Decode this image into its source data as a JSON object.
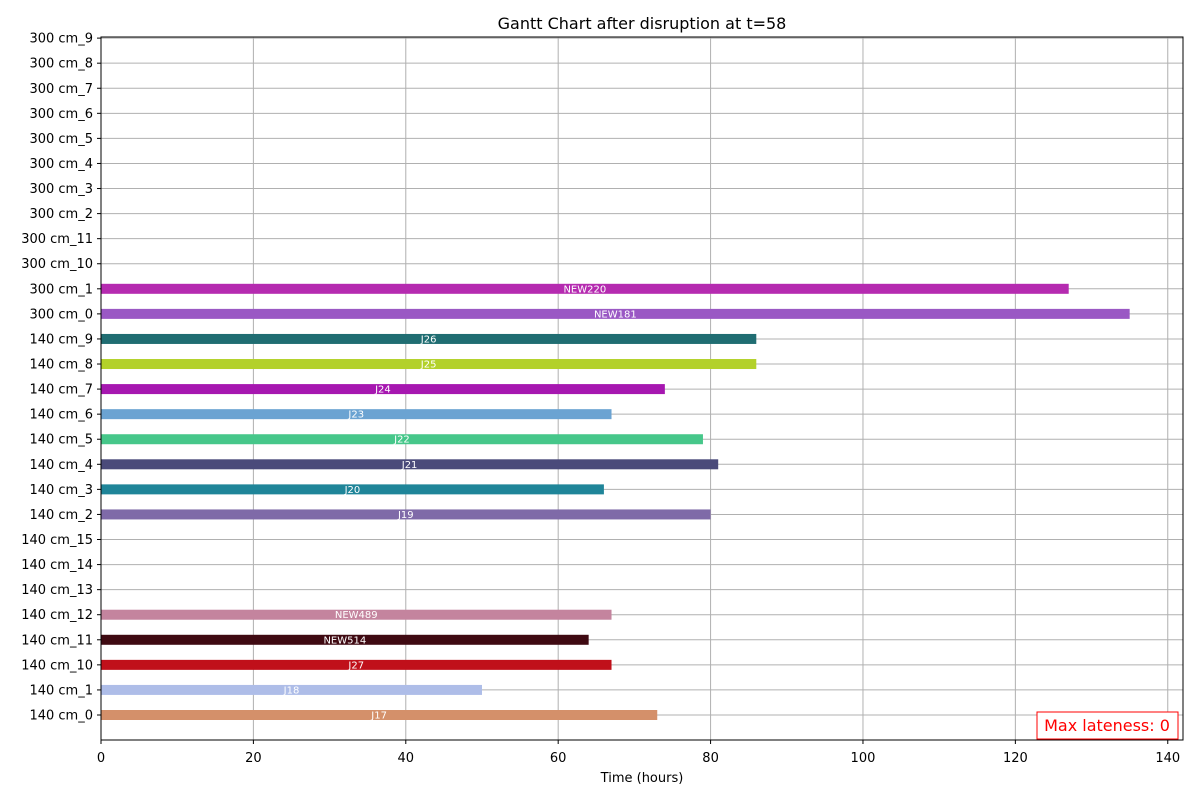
{
  "chart_data": {
    "type": "gantt",
    "title": "Gantt Chart after disruption at t=58",
    "xlabel": "Time (hours)",
    "ylabel": "",
    "xlim": [
      0,
      142
    ],
    "xticks": [
      0,
      20,
      40,
      60,
      80,
      100,
      120,
      140
    ],
    "grid": true,
    "annotation": "Max lateness: 0",
    "colors": {
      "annotation": "#ff0000",
      "grid": "#b0b0b0"
    },
    "resources": [
      "140 cm_0",
      "140 cm_1",
      "140 cm_10",
      "140 cm_11",
      "140 cm_12",
      "140 cm_13",
      "140 cm_14",
      "140 cm_15",
      "140 cm_2",
      "140 cm_3",
      "140 cm_4",
      "140 cm_5",
      "140 cm_6",
      "140 cm_7",
      "140 cm_8",
      "140 cm_9",
      "300 cm_0",
      "300 cm_1",
      "300 cm_10",
      "300 cm_11",
      "300 cm_2",
      "300 cm_3",
      "300 cm_4",
      "300 cm_5",
      "300 cm_6",
      "300 cm_7",
      "300 cm_8",
      "300 cm_9"
    ],
    "tasks": [
      {
        "resource": "140 cm_0",
        "label": "J17",
        "start": 0,
        "end": 73,
        "color": "#d4906a"
      },
      {
        "resource": "140 cm_1",
        "label": "J18",
        "start": 0,
        "end": 50,
        "color": "#aebde8"
      },
      {
        "resource": "140 cm_10",
        "label": "J27",
        "start": 0,
        "end": 67,
        "color": "#c0101a"
      },
      {
        "resource": "140 cm_11",
        "label": "NEW514",
        "start": 0,
        "end": 64,
        "color": "#3f0a12"
      },
      {
        "resource": "140 cm_12",
        "label": "NEW489",
        "start": 0,
        "end": 67,
        "color": "#c4849e"
      },
      {
        "resource": "140 cm_2",
        "label": "J19",
        "start": 0,
        "end": 80,
        "color": "#7f6aa8"
      },
      {
        "resource": "140 cm_3",
        "label": "J20",
        "start": 0,
        "end": 66,
        "color": "#1f8599"
      },
      {
        "resource": "140 cm_4",
        "label": "J21",
        "start": 0,
        "end": 81,
        "color": "#4a4a7a"
      },
      {
        "resource": "140 cm_5",
        "label": "J22",
        "start": 0,
        "end": 79,
        "color": "#46c78a"
      },
      {
        "resource": "140 cm_6",
        "label": "J23",
        "start": 0,
        "end": 67,
        "color": "#6ba3d2"
      },
      {
        "resource": "140 cm_7",
        "label": "J24",
        "start": 0,
        "end": 74,
        "color": "#a617b0"
      },
      {
        "resource": "140 cm_8",
        "label": "J25",
        "start": 0,
        "end": 86,
        "color": "#b3d12a"
      },
      {
        "resource": "140 cm_9",
        "label": "J26",
        "start": 0,
        "end": 86,
        "color": "#206d72"
      },
      {
        "resource": "300 cm_0",
        "label": "NEW181",
        "start": 0,
        "end": 135,
        "color": "#9a58c4"
      },
      {
        "resource": "300 cm_1",
        "label": "NEW220",
        "start": 0,
        "end": 127,
        "color": "#b52bb0"
      }
    ]
  }
}
